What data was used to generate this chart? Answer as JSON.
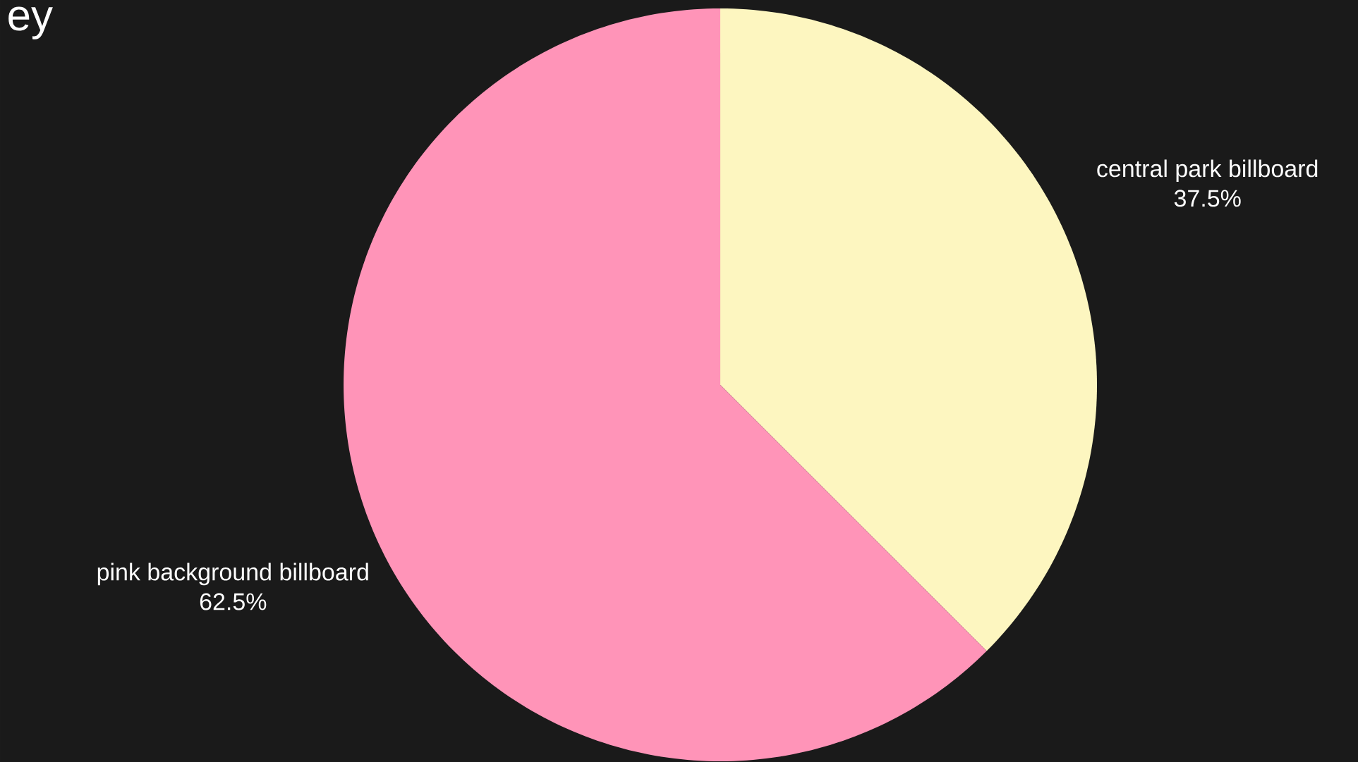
{
  "chart_data": {
    "type": "pie",
    "title": "ey",
    "categories": [
      "central park billboard",
      "pink background billboard"
    ],
    "values": [
      37.5,
      62.5
    ],
    "value_labels": [
      "37.5%",
      "62.5%"
    ],
    "colors": [
      "#fdf6c0",
      "#ff94b8"
    ]
  }
}
